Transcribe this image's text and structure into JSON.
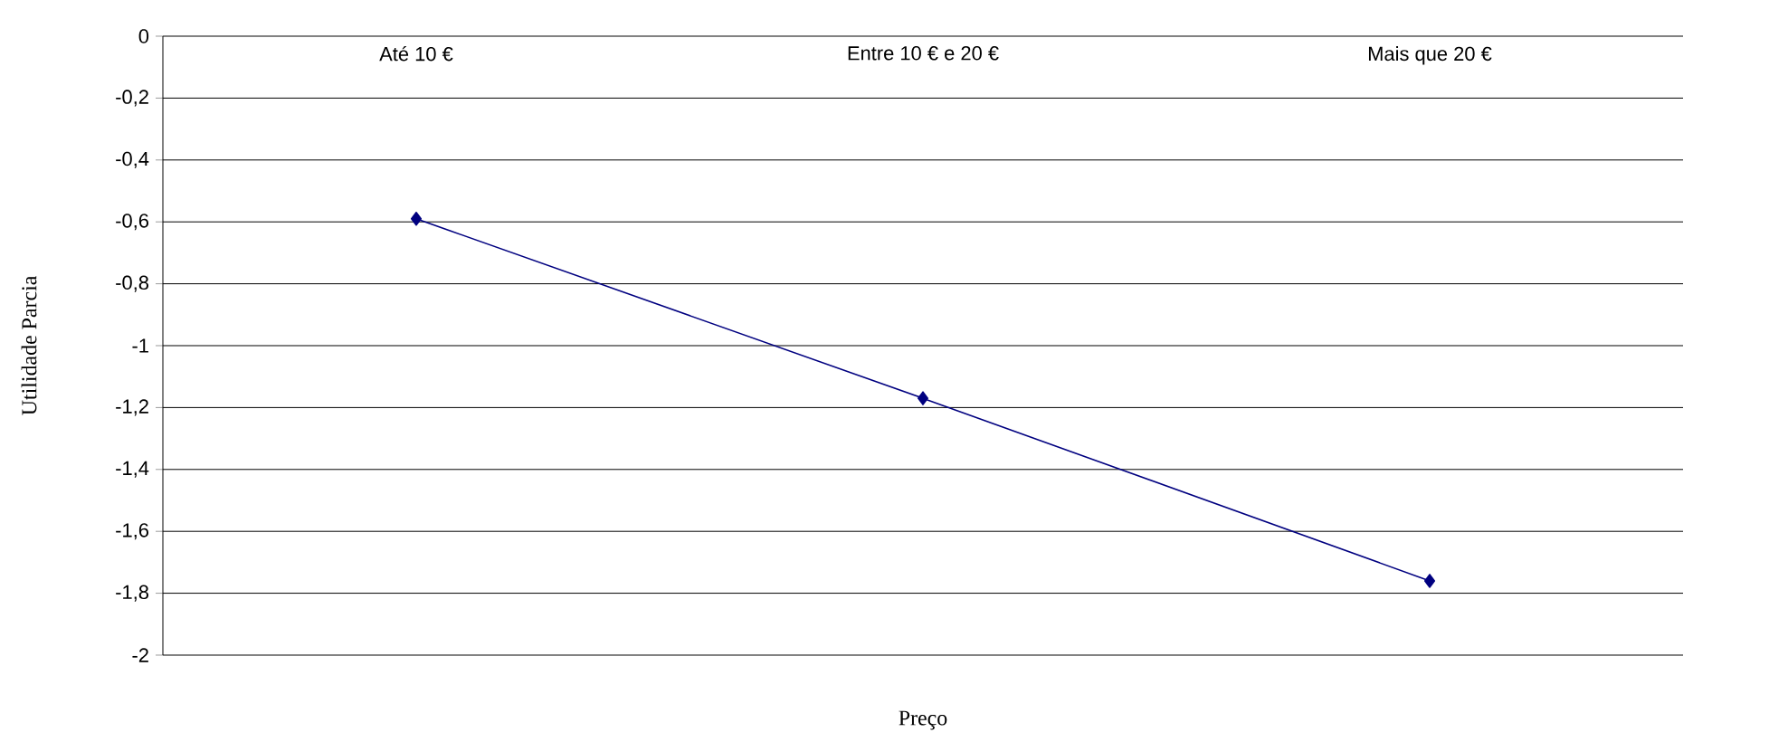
{
  "chart_data": {
    "type": "line",
    "xlabel": "Preço",
    "ylabel": "Utilidade Parcia",
    "categories": [
      "Até 10 €",
      "Entre 10 € e 20 €",
      "Mais que 20 €"
    ],
    "series": [
      {
        "color": "#000080",
        "values": [
          -0.59,
          -1.17,
          -1.76
        ]
      }
    ],
    "ylim": [
      -2,
      0
    ],
    "yticks": [
      0,
      {
        "value": -0.2,
        "label": "-0,2"
      },
      {
        "value": -0.4,
        "label": "-0,4"
      },
      {
        "value": -0.6,
        "label": "-0,6"
      },
      {
        "value": -0.8,
        "label": "-0,8"
      },
      -1,
      {
        "value": -1.2,
        "label": "-1,2"
      },
      {
        "value": -1.4,
        "label": "-1,4"
      },
      {
        "value": -1.6,
        "label": "-1,6"
      },
      {
        "value": -1.8,
        "label": "-1,8"
      },
      -2
    ],
    "grid": "y",
    "marker": "diamond",
    "line_style": "solid"
  }
}
